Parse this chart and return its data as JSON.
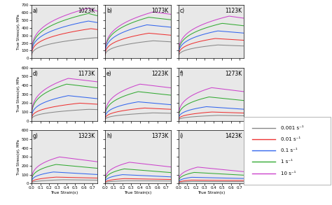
{
  "temperatures": [
    "1023K",
    "1073K",
    "1123K",
    "1173K",
    "1223K",
    "1273K",
    "1323K",
    "1373K",
    "1423K"
  ],
  "labels": [
    "a)",
    "b)",
    "c)",
    "d)",
    "e)",
    "f)",
    "g)",
    "h)",
    "i)"
  ],
  "rate_labels": [
    "0.001 s⁻¹",
    "0.01 s⁻¹",
    "0.1 s⁻¹",
    "1 s⁻¹",
    "10 s⁻¹"
  ],
  "colors": [
    "#888888",
    "#ee3333",
    "#3366ee",
    "#33aa33",
    "#cc44cc"
  ],
  "ylims": [
    [
      0,
      700
    ],
    [
      0,
      700
    ],
    [
      0,
      700
    ],
    [
      0,
      600
    ],
    [
      0,
      600
    ],
    [
      0,
      600
    ],
    [
      0,
      600
    ],
    [
      0,
      600
    ],
    [
      0,
      600
    ]
  ],
  "yticks_700": [
    0,
    100,
    200,
    300,
    400,
    500,
    600,
    700
  ],
  "yticks_600": [
    0,
    100,
    200,
    300,
    400,
    500,
    600
  ],
  "xticks": [
    0.0,
    0.1,
    0.2,
    0.3,
    0.4,
    0.5,
    0.6,
    0.7
  ],
  "xlim": [
    0.0,
    0.75
  ],
  "background_color": "#e8e8e8",
  "xlabel": "True Strain(ε)",
  "ylabel": "True Stress(σ), MPa",
  "curves": [
    {
      "temp": "1023K",
      "data": [
        {
          "peak": 270,
          "peak_e": 0.72,
          "soft": 0.0
        },
        {
          "peak": 390,
          "peak_e": 0.68,
          "soft": 0.03
        },
        {
          "peak": 490,
          "peak_e": 0.65,
          "soft": 0.04
        },
        {
          "peak": 590,
          "peak_e": 0.65,
          "soft": 0.05
        },
        {
          "peak": 660,
          "peak_e": 0.65,
          "soft": 0.06
        }
      ]
    },
    {
      "temp": "1073K",
      "data": [
        {
          "peak": 230,
          "peak_e": 0.55,
          "soft": 0.06
        },
        {
          "peak": 330,
          "peak_e": 0.5,
          "soft": 0.08
        },
        {
          "peak": 440,
          "peak_e": 0.48,
          "soft": 0.07
        },
        {
          "peak": 540,
          "peak_e": 0.5,
          "soft": 0.06
        },
        {
          "peak": 610,
          "peak_e": 0.55,
          "soft": 0.05
        }
      ]
    },
    {
      "temp": "1123K",
      "data": [
        {
          "peak": 175,
          "peak_e": 0.45,
          "soft": 0.08
        },
        {
          "peak": 260,
          "peak_e": 0.42,
          "soft": 0.09
        },
        {
          "peak": 360,
          "peak_e": 0.45,
          "soft": 0.08
        },
        {
          "peak": 460,
          "peak_e": 0.5,
          "soft": 0.07
        },
        {
          "peak": 555,
          "peak_e": 0.58,
          "soft": 0.05
        }
      ]
    },
    {
      "temp": "1173K",
      "data": [
        {
          "peak": 130,
          "peak_e": 0.65,
          "soft": 0.02
        },
        {
          "peak": 200,
          "peak_e": 0.55,
          "soft": 0.06
        },
        {
          "peak": 285,
          "peak_e": 0.42,
          "soft": 0.12
        },
        {
          "peak": 415,
          "peak_e": 0.4,
          "soft": 0.1
        },
        {
          "peak": 480,
          "peak_e": 0.42,
          "soft": 0.08
        }
      ]
    },
    {
      "temp": "1223K",
      "data": [
        {
          "peak": 90,
          "peak_e": 0.55,
          "soft": 0.05
        },
        {
          "peak": 145,
          "peak_e": 0.45,
          "soft": 0.1
        },
        {
          "peak": 215,
          "peak_e": 0.38,
          "soft": 0.15
        },
        {
          "peak": 330,
          "peak_e": 0.38,
          "soft": 0.12
        },
        {
          "peak": 415,
          "peak_e": 0.4,
          "soft": 0.1
        }
      ]
    },
    {
      "temp": "1273K",
      "data": [
        {
          "peak": 62,
          "peak_e": 0.45,
          "soft": 0.08
        },
        {
          "peak": 100,
          "peak_e": 0.38,
          "soft": 0.12
        },
        {
          "peak": 160,
          "peak_e": 0.32,
          "soft": 0.18
        },
        {
          "peak": 270,
          "peak_e": 0.35,
          "soft": 0.15
        },
        {
          "peak": 375,
          "peak_e": 0.38,
          "soft": 0.12
        }
      ]
    },
    {
      "temp": "1323K",
      "data": [
        {
          "peak": 42,
          "peak_e": 0.35,
          "soft": 0.1
        },
        {
          "peak": 72,
          "peak_e": 0.28,
          "soft": 0.15
        },
        {
          "peak": 130,
          "peak_e": 0.25,
          "soft": 0.22
        },
        {
          "peak": 215,
          "peak_e": 0.28,
          "soft": 0.2
        },
        {
          "peak": 300,
          "peak_e": 0.32,
          "soft": 0.18
        }
      ]
    },
    {
      "temp": "1373K",
      "data": [
        {
          "peak": 32,
          "peak_e": 0.25,
          "soft": 0.12
        },
        {
          "peak": 55,
          "peak_e": 0.22,
          "soft": 0.18
        },
        {
          "peak": 100,
          "peak_e": 0.2,
          "soft": 0.25
        },
        {
          "peak": 165,
          "peak_e": 0.22,
          "soft": 0.25
        },
        {
          "peak": 240,
          "peak_e": 0.28,
          "soft": 0.22
        }
      ]
    },
    {
      "temp": "1423K",
      "data": [
        {
          "peak": 22,
          "peak_e": 0.15,
          "soft": 0.08
        },
        {
          "peak": 38,
          "peak_e": 0.15,
          "soft": 0.15
        },
        {
          "peak": 70,
          "peak_e": 0.15,
          "soft": 0.2
        },
        {
          "peak": 125,
          "peak_e": 0.18,
          "soft": 0.25
        },
        {
          "peak": 185,
          "peak_e": 0.22,
          "soft": 0.28
        }
      ]
    }
  ]
}
